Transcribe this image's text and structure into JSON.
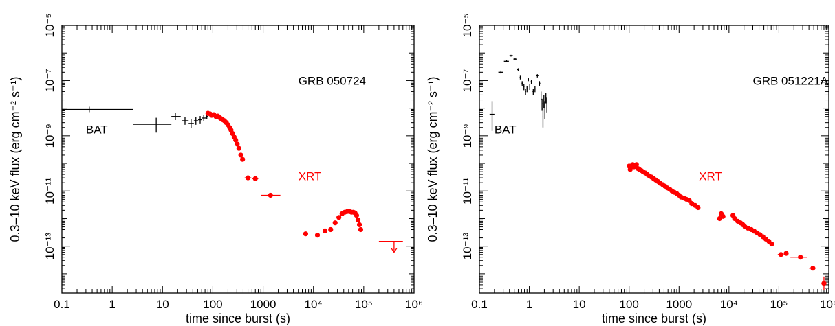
{
  "chart_data": [
    {
      "type": "scatter",
      "title": "",
      "xlabel": "time since burst (s)",
      "ylabel": "0.3–10 keV flux (erg cm⁻² s⁻¹)",
      "xscale": "log",
      "yscale": "log",
      "xlim": [
        0.1,
        1000000
      ],
      "ylim": [
        2e-15,
        1e-05
      ],
      "x_tick_labels": [
        {
          "value": 0.1,
          "label": "0.1"
        },
        {
          "value": 1,
          "label": "1"
        },
        {
          "value": 10,
          "label": "10"
        },
        {
          "value": 100,
          "label": "100"
        },
        {
          "value": 1000,
          "label": "1000"
        },
        {
          "value": 10000,
          "label": "10⁴"
        },
        {
          "value": 100000,
          "label": "10⁵"
        },
        {
          "value": 1000000,
          "label": "10⁶"
        }
      ],
      "y_tick_labels": [
        {
          "value": 1e-05,
          "label": "10⁻⁵"
        },
        {
          "value": 1e-07,
          "label": "10⁻⁷"
        },
        {
          "value": 1e-09,
          "label": "10⁻⁹"
        },
        {
          "value": 1e-11,
          "label": "10⁻¹¹"
        },
        {
          "value": 1e-13,
          "label": "10⁻¹³"
        }
      ],
      "annotations": [
        {
          "text": "GRB 050724",
          "x": 5000,
          "y": 7e-08,
          "color": "#000000"
        },
        {
          "text": "BAT",
          "x": 0.3,
          "y": 1.2e-09,
          "color": "#000000"
        },
        {
          "text": "XRT",
          "x": 5000,
          "y": 2.5e-11,
          "color": "#ff0000"
        }
      ],
      "series": [
        {
          "color": "#000000",
          "marker": "cross",
          "points": [
            {
              "x": 0.35,
              "x_lo": 0.1,
              "x_hi": 2.6,
              "y": 9e-09
            },
            {
              "x": 7.5,
              "x_lo": 2.6,
              "x_hi": 15,
              "y": 2.6e-09,
              "y_lo": 1.3e-09,
              "y_hi": 4.5e-09
            },
            {
              "x": 18,
              "x_lo": 15,
              "x_hi": 23,
              "y": 5e-09,
              "y_lo": 3.7e-09,
              "y_hi": 6.8e-09
            },
            {
              "x": 28,
              "x_lo": 24,
              "x_hi": 33,
              "y": 3.5e-09,
              "y_lo": 2.5e-09,
              "y_hi": 4.8e-09
            },
            {
              "x": 37,
              "x_lo": 33,
              "x_hi": 42,
              "y": 2.8e-09,
              "y_lo": 1.9e-09,
              "y_hi": 4e-09
            },
            {
              "x": 46,
              "x_lo": 42,
              "x_hi": 51,
              "y": 3.5e-09,
              "y_lo": 2.5e-09,
              "y_hi": 4.8e-09
            },
            {
              "x": 56,
              "x_lo": 51,
              "x_hi": 61,
              "y": 3.8e-09,
              "y_lo": 2.8e-09,
              "y_hi": 5.2e-09
            },
            {
              "x": 66,
              "x_lo": 61,
              "x_hi": 72,
              "y": 4.4e-09,
              "y_lo": 3.4e-09,
              "y_hi": 5.8e-09
            },
            {
              "x": 76,
              "x_lo": 72,
              "x_hi": 80,
              "y": 5e-09,
              "y_lo": 4e-09,
              "y_hi": 6.3e-09
            }
          ]
        },
        {
          "color": "#ff0000",
          "marker": "dot",
          "points": [
            {
              "x": 80,
              "y": 6.5e-09
            },
            {
              "x": 88,
              "y": 6.2e-09
            },
            {
              "x": 95,
              "y": 5.5e-09
            },
            {
              "x": 105,
              "y": 5.8e-09
            },
            {
              "x": 115,
              "y": 5e-09
            },
            {
              "x": 125,
              "y": 5.2e-09
            },
            {
              "x": 135,
              "y": 4.6e-09
            },
            {
              "x": 145,
              "y": 4.2e-09
            },
            {
              "x": 158,
              "y": 3.8e-09
            },
            {
              "x": 170,
              "y": 3.5e-09
            },
            {
              "x": 185,
              "y": 3e-09
            },
            {
              "x": 200,
              "y": 2.5e-09
            },
            {
              "x": 215,
              "y": 2e-09
            },
            {
              "x": 230,
              "y": 1.6e-09
            },
            {
              "x": 248,
              "y": 1.2e-09
            },
            {
              "x": 265,
              "y": 9e-10
            },
            {
              "x": 285,
              "y": 7e-10
            },
            {
              "x": 305,
              "y": 5e-10
            },
            {
              "x": 330,
              "y": 3.5e-10
            },
            {
              "x": 360,
              "y": 2e-10
            },
            {
              "x": 390,
              "y": 1.4e-10
            },
            {
              "x": 500,
              "x_lo": 430,
              "x_hi": 580,
              "y": 3e-11
            },
            {
              "x": 700,
              "x_lo": 600,
              "x_hi": 800,
              "y": 2.8e-11
            },
            {
              "x": 1400,
              "x_lo": 900,
              "x_hi": 2200,
              "y": 7e-12
            },
            {
              "x": 7000,
              "x_lo": 6200,
              "x_hi": 7800,
              "y": 2.8e-13
            },
            {
              "x": 12000,
              "x_lo": 11000,
              "x_hi": 13000,
              "y": 2.5e-13
            },
            {
              "x": 17000,
              "x_lo": 15500,
              "x_hi": 18500,
              "y": 3.6e-13
            },
            {
              "x": 22000,
              "x_lo": 20500,
              "x_hi": 23500,
              "y": 4e-13
            },
            {
              "x": 27000,
              "y": 7e-13
            },
            {
              "x": 32000,
              "y": 1.1e-12
            },
            {
              "x": 37000,
              "y": 1.5e-12
            },
            {
              "x": 42000,
              "y": 1.7e-12
            },
            {
              "x": 47000,
              "y": 1.8e-12
            },
            {
              "x": 52000,
              "y": 1.8e-12
            },
            {
              "x": 57000,
              "y": 1.7e-12
            },
            {
              "x": 62000,
              "y": 1.7e-12
            },
            {
              "x": 67000,
              "y": 1.6e-12
            },
            {
              "x": 72000,
              "y": 1.3e-12
            },
            {
              "x": 77000,
              "y": 9e-13
            },
            {
              "x": 82000,
              "y": 6e-13
            },
            {
              "x": 87000,
              "y": 4e-13
            }
          ]
        },
        {
          "color": "#ff0000",
          "marker": "upper-limit",
          "points": [
            {
              "x": 400000,
              "x_lo": 200000,
              "x_hi": 600000,
              "y": 1.5e-13
            }
          ]
        }
      ]
    },
    {
      "type": "scatter",
      "title": "",
      "xlabel": "time since burst (s)",
      "ylabel": "0.3–10 keV flux (erg cm⁻² s⁻¹)",
      "xscale": "log",
      "yscale": "log",
      "xlim": [
        0.1,
        1000000
      ],
      "ylim": [
        2e-15,
        1e-05
      ],
      "x_tick_labels": [
        {
          "value": 0.1,
          "label": "0.1"
        },
        {
          "value": 1,
          "label": "1"
        },
        {
          "value": 10,
          "label": "10"
        },
        {
          "value": 100,
          "label": "100"
        },
        {
          "value": 1000,
          "label": "1000"
        },
        {
          "value": 10000,
          "label": "10⁴"
        },
        {
          "value": 100000,
          "label": "10⁵"
        },
        {
          "value": 1000000,
          "label": "10⁶"
        }
      ],
      "y_tick_labels": [
        {
          "value": 1e-05,
          "label": "10⁻⁵"
        },
        {
          "value": 1e-07,
          "label": "10⁻⁷"
        },
        {
          "value": 1e-09,
          "label": "10⁻⁹"
        },
        {
          "value": 1e-11,
          "label": "10⁻¹¹"
        },
        {
          "value": 1e-13,
          "label": "10⁻¹³"
        }
      ],
      "annotations": [
        {
          "text": "GRB 051221A",
          "x": 30000,
          "y": 7e-08,
          "color": "#000000"
        },
        {
          "text": "BAT",
          "x": 0.2,
          "y": 1.2e-09,
          "color": "#000000"
        },
        {
          "text": "XRT",
          "x": 2500,
          "y": 2.5e-11,
          "color": "#ff0000"
        }
      ],
      "series": [
        {
          "color": "#000000",
          "marker": "cross",
          "points": [
            {
              "x": 0.18,
              "x_lo": 0.16,
              "x_hi": 0.2,
              "y": 6e-09,
              "y_lo": 1.5e-09,
              "y_hi": 1.8e-08
            },
            {
              "x": 0.27,
              "x_lo": 0.24,
              "x_hi": 0.3,
              "y": 2e-07,
              "y_lo": 1.8e-07,
              "y_hi": 2.3e-07
            },
            {
              "x": 0.35,
              "x_lo": 0.31,
              "x_hi": 0.39,
              "y": 5e-07,
              "y_lo": 4.6e-07,
              "y_hi": 5.4e-07
            },
            {
              "x": 0.43,
              "x_lo": 0.4,
              "x_hi": 0.47,
              "y": 8e-07,
              "y_lo": 7.4e-07,
              "y_hi": 8.6e-07
            },
            {
              "x": 0.52,
              "x_lo": 0.48,
              "x_hi": 0.56,
              "y": 6e-07,
              "y_lo": 5.5e-07,
              "y_hi": 6.5e-07
            },
            {
              "x": 0.6,
              "x_lo": 0.57,
              "x_hi": 0.63,
              "y": 2.5e-07,
              "y_lo": 2.2e-07,
              "y_hi": 2.8e-07
            },
            {
              "x": 0.66,
              "x_lo": 0.64,
              "x_hi": 0.68,
              "y": 1.3e-07,
              "y_lo": 1.1e-07,
              "y_hi": 1.5e-07
            },
            {
              "x": 0.72,
              "x_lo": 0.7,
              "x_hi": 0.74,
              "y": 8e-08,
              "y_lo": 6.5e-08,
              "y_hi": 9.5e-08
            },
            {
              "x": 0.78,
              "x_lo": 0.76,
              "x_hi": 0.8,
              "y": 6e-08,
              "y_lo": 4.5e-08,
              "y_hi": 7.5e-08
            },
            {
              "x": 0.84,
              "x_lo": 0.82,
              "x_hi": 0.86,
              "y": 4e-08,
              "y_lo": 3e-08,
              "y_hi": 5e-08
            },
            {
              "x": 0.9,
              "x_lo": 0.88,
              "x_hi": 0.92,
              "y": 5e-08,
              "y_lo": 3.8e-08,
              "y_hi": 6.2e-08
            },
            {
              "x": 0.96,
              "x_lo": 0.94,
              "x_hi": 0.98,
              "y": 1.1e-07,
              "y_lo": 9.5e-08,
              "y_hi": 1.25e-07
            },
            {
              "x": 1.02,
              "x_lo": 1,
              "x_hi": 1.04,
              "y": 6e-08,
              "y_lo": 4.6e-08,
              "y_hi": 7.4e-08
            },
            {
              "x": 1.1,
              "x_lo": 1.06,
              "x_hi": 1.14,
              "y": 9e-08,
              "y_lo": 7.5e-08,
              "y_hi": 1.05e-07
            },
            {
              "x": 1.2,
              "x_lo": 1.16,
              "x_hi": 1.24,
              "y": 4e-08,
              "y_lo": 3e-08,
              "y_hi": 5e-08
            },
            {
              "x": 1.3,
              "x_lo": 1.26,
              "x_hi": 1.34,
              "y": 5e-08,
              "y_lo": 3.8e-08,
              "y_hi": 6.2e-08
            },
            {
              "x": 1.45,
              "x_lo": 1.38,
              "x_hi": 1.52,
              "y": 1.5e-07,
              "y_lo": 1.3e-07,
              "y_hi": 1.7e-07
            },
            {
              "x": 1.6,
              "x_lo": 1.54,
              "x_hi": 1.66,
              "y": 8e-08,
              "y_lo": 6.5e-08,
              "y_hi": 9.5e-08
            },
            {
              "x": 1.72,
              "x_lo": 1.68,
              "x_hi": 1.76,
              "y": 3e-08,
              "y_lo": 2e-08,
              "y_hi": 4e-08
            },
            {
              "x": 1.8,
              "x_lo": 1.77,
              "x_hi": 1.83,
              "y": 1.5e-08,
              "y_lo": 8e-09,
              "y_hi": 2.2e-08
            },
            {
              "x": 1.88,
              "x_lo": 1.85,
              "x_hi": 1.91,
              "y": 5e-09,
              "y_lo": 2e-09,
              "y_hi": 1e-08
            },
            {
              "x": 1.96,
              "x_lo": 1.93,
              "x_hi": 1.99,
              "y": 2e-08,
              "y_lo": 1e-08,
              "y_hi": 3e-08
            },
            {
              "x": 2.05,
              "x_lo": 2.01,
              "x_hi": 2.09,
              "y": 1e-08,
              "y_lo": 4e-09,
              "y_hi": 1.8e-08
            },
            {
              "x": 2.15,
              "x_lo": 2.11,
              "x_hi": 2.19,
              "y": 2.5e-08,
              "y_lo": 1.5e-08,
              "y_hi": 3.5e-08
            },
            {
              "x": 2.25,
              "x_lo": 2.21,
              "x_hi": 2.29,
              "y": 1.5e-08,
              "y_lo": 7e-09,
              "y_hi": 2.4e-08
            }
          ]
        },
        {
          "color": "#ff0000",
          "marker": "dot",
          "points": [
            {
              "x": 100,
              "y": 8e-11
            },
            {
              "x": 105,
              "y": 6e-11
            },
            {
              "x": 110,
              "y": 8e-11
            },
            {
              "x": 118,
              "y": 9e-11
            },
            {
              "x": 125,
              "y": 7.5e-11
            },
            {
              "x": 132,
              "y": 8.5e-11
            },
            {
              "x": 140,
              "y": 9e-11
            },
            {
              "x": 150,
              "y": 6.5e-11
            },
            {
              "x": 160,
              "y": 6e-11
            },
            {
              "x": 175,
              "y": 5.5e-11
            },
            {
              "x": 190,
              "y": 5e-11
            },
            {
              "x": 210,
              "y": 4.5e-11
            },
            {
              "x": 230,
              "y": 4e-11
            },
            {
              "x": 255,
              "y": 3.5e-11
            },
            {
              "x": 280,
              "y": 3.2e-11
            },
            {
              "x": 310,
              "y": 2.8e-11
            },
            {
              "x": 340,
              "y": 2.5e-11
            },
            {
              "x": 380,
              "y": 2.2e-11
            },
            {
              "x": 420,
              "y": 1.9e-11
            },
            {
              "x": 470,
              "y": 1.7e-11
            },
            {
              "x": 520,
              "y": 1.5e-11
            },
            {
              "x": 580,
              "y": 1.3e-11
            },
            {
              "x": 650,
              "y": 1.15e-11
            },
            {
              "x": 720,
              "y": 1e-11
            },
            {
              "x": 800,
              "y": 9e-12
            },
            {
              "x": 900,
              "y": 8e-12
            },
            {
              "x": 1000,
              "y": 7e-12
            },
            {
              "x": 1100,
              "y": 6e-12
            },
            {
              "x": 1250,
              "y": 5.5e-12
            },
            {
              "x": 1400,
              "y": 5e-12
            },
            {
              "x": 1600,
              "y": 4.5e-12
            },
            {
              "x": 1800,
              "y": 3.5e-12
            },
            {
              "x": 2100,
              "y": 3e-12
            },
            {
              "x": 2400,
              "y": 2.5e-12
            },
            {
              "x": 6500,
              "y": 1e-12
            },
            {
              "x": 7000,
              "y": 1.5e-12
            },
            {
              "x": 7600,
              "y": 1.2e-12
            },
            {
              "x": 12000,
              "y": 1.3e-12
            },
            {
              "x": 13000,
              "y": 1e-12
            },
            {
              "x": 15000,
              "y": 8e-13
            },
            {
              "x": 17000,
              "y": 7e-13
            },
            {
              "x": 19000,
              "y": 6e-13
            },
            {
              "x": 21000,
              "y": 5e-13
            },
            {
              "x": 24000,
              "y": 4.5e-13
            },
            {
              "x": 28000,
              "y": 4e-13
            },
            {
              "x": 32000,
              "y": 3.5e-13
            },
            {
              "x": 37000,
              "y": 3e-13
            },
            {
              "x": 42000,
              "y": 2.6e-13
            },
            {
              "x": 48000,
              "y": 2.2e-13
            },
            {
              "x": 55000,
              "y": 1.8e-13
            },
            {
              "x": 63000,
              "y": 1.5e-13
            },
            {
              "x": 72000,
              "y": 1.2e-13
            },
            {
              "x": 110000,
              "x_lo": 95000,
              "x_hi": 125000,
              "y": 5e-14
            },
            {
              "x": 140000,
              "x_lo": 125000,
              "x_hi": 155000,
              "y": 5.5e-14
            },
            {
              "x": 270000,
              "x_lo": 170000,
              "x_hi": 370000,
              "y": 4e-14
            },
            {
              "x": 480000,
              "x_lo": 400000,
              "x_hi": 560000,
              "y": 1.6e-14
            },
            {
              "x": 800000,
              "x_lo": 700000,
              "x_hi": 900000,
              "y": 4.5e-15,
              "y_lo": 2.5e-15,
              "y_hi": 8e-15
            }
          ]
        }
      ]
    }
  ]
}
